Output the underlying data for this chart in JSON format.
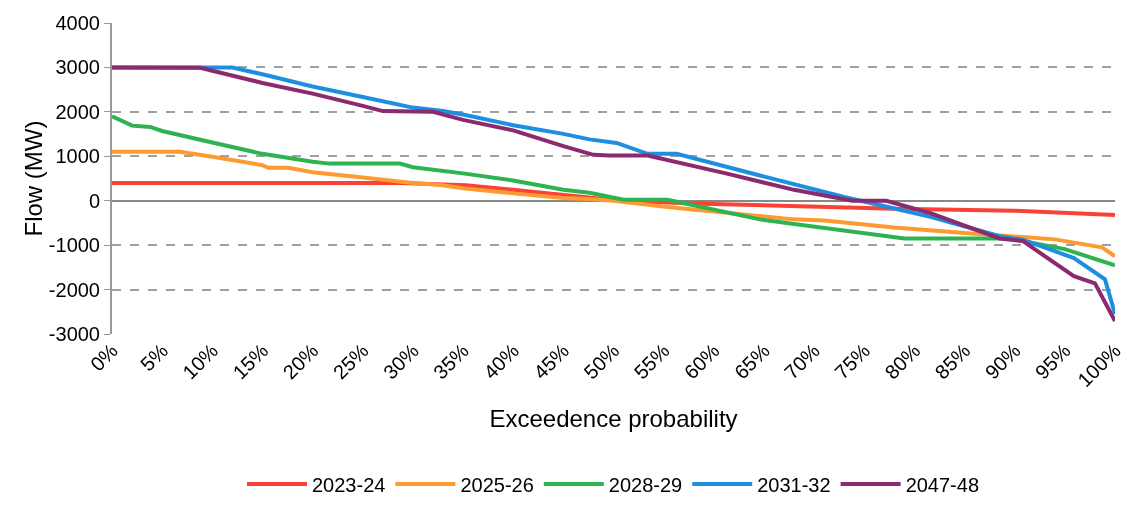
{
  "chart_data": {
    "type": "line",
    "xlabel": "Exceedence probability",
    "ylabel": "Flow (MW)",
    "xlim": [
      0,
      100
    ],
    "xticks": [
      {
        "value": 0,
        "label": "0%"
      },
      {
        "value": 5,
        "label": "5%"
      },
      {
        "value": 10,
        "label": "10%"
      },
      {
        "value": 15,
        "label": "15%"
      },
      {
        "value": 20,
        "label": "20%"
      },
      {
        "value": 25,
        "label": "25%"
      },
      {
        "value": 30,
        "label": "30%"
      },
      {
        "value": 35,
        "label": "35%"
      },
      {
        "value": 40,
        "label": "40%"
      },
      {
        "value": 45,
        "label": "45%"
      },
      {
        "value": 50,
        "label": "50%"
      },
      {
        "value": 55,
        "label": "55%"
      },
      {
        "value": 60,
        "label": "60%"
      },
      {
        "value": 65,
        "label": "65%"
      },
      {
        "value": 70,
        "label": "70%"
      },
      {
        "value": 75,
        "label": "75%"
      },
      {
        "value": 80,
        "label": "80%"
      },
      {
        "value": 85,
        "label": "85%"
      },
      {
        "value": 90,
        "label": "90%"
      },
      {
        "value": 95,
        "label": "95%"
      },
      {
        "value": 100,
        "label": "100%"
      }
    ],
    "ylim": [
      -3000,
      4000
    ],
    "yticks": [
      -3000,
      -2000,
      -1000,
      0,
      1000,
      2000,
      3000,
      4000
    ],
    "grid": "y",
    "legend": "bottom",
    "marker": "none",
    "line_style": "solid",
    "series": [
      {
        "name": "2023-24",
        "color": "#fa4136",
        "x": [
          0,
          28.7,
          35.3,
          45.3,
          50.2,
          57.8,
          78,
          90,
          100
        ],
        "values": [
          400,
          400,
          350,
          125,
          10,
          -60,
          -180,
          -225,
          -320
        ]
      },
      {
        "name": "2025-26",
        "color": "#fd9a30",
        "x": [
          0,
          6.8,
          10,
          15,
          15.6,
          17.6,
          20,
          25,
          30,
          32.6,
          35,
          40,
          45,
          47.6,
          50,
          55.4,
          68,
          71,
          78,
          85,
          94,
          98.7,
          100
        ],
        "values": [
          1100,
          1100,
          990,
          800,
          740,
          740,
          640,
          520,
          400,
          360,
          280,
          165,
          60,
          40,
          0,
          -140,
          -420,
          -445,
          -605,
          -725,
          -870,
          -1050,
          -1250
        ]
      },
      {
        "name": "2028-29",
        "color": "#2db34f",
        "x": [
          0,
          2,
          3.8,
          5,
          10,
          15,
          20,
          21.7,
          28.7,
          30,
          35,
          40,
          45,
          47.6,
          51,
          55.4,
          64.6,
          79,
          89.5,
          95,
          100
        ],
        "values": [
          1900,
          1690,
          1660,
          1570,
          1310,
          1055,
          875,
          835,
          835,
          755,
          615,
          457,
          245,
          180,
          20,
          20,
          -420,
          -850,
          -850,
          -1090,
          -1455
        ]
      },
      {
        "name": "2031-32",
        "color": "#1e8fe0",
        "x": [
          0,
          12,
          15,
          20,
          25,
          30,
          33,
          35,
          40,
          45,
          47.6,
          50.3,
          53.4,
          56.3,
          64.6,
          73,
          81.6,
          88.5,
          90.8,
          95.9,
          99,
          100
        ],
        "values": [
          3000,
          3000,
          2845,
          2570,
          2333,
          2096,
          2017,
          1939,
          1700,
          1505,
          1380,
          1300,
          1055,
          1055,
          567,
          83,
          -360,
          -800,
          -875,
          -1290,
          -1770,
          -2550
        ]
      },
      {
        "name": "2047-48",
        "color": "#8b2a6e",
        "x": [
          0,
          8.8,
          10,
          15,
          20,
          25,
          27,
          32,
          35,
          40,
          45,
          48,
          49.6,
          53.4,
          61.2,
          68,
          73.8,
          77.2,
          81.6,
          88.5,
          90.8,
          95.9,
          98,
          100
        ],
        "values": [
          3000,
          2990,
          2925,
          2650,
          2410,
          2135,
          2017,
          2000,
          1820,
          1584,
          1230,
          1033,
          1015,
          1015,
          615,
          245,
          0,
          0,
          -280,
          -850,
          -905,
          -1700,
          -1860,
          -2710
        ]
      }
    ]
  }
}
